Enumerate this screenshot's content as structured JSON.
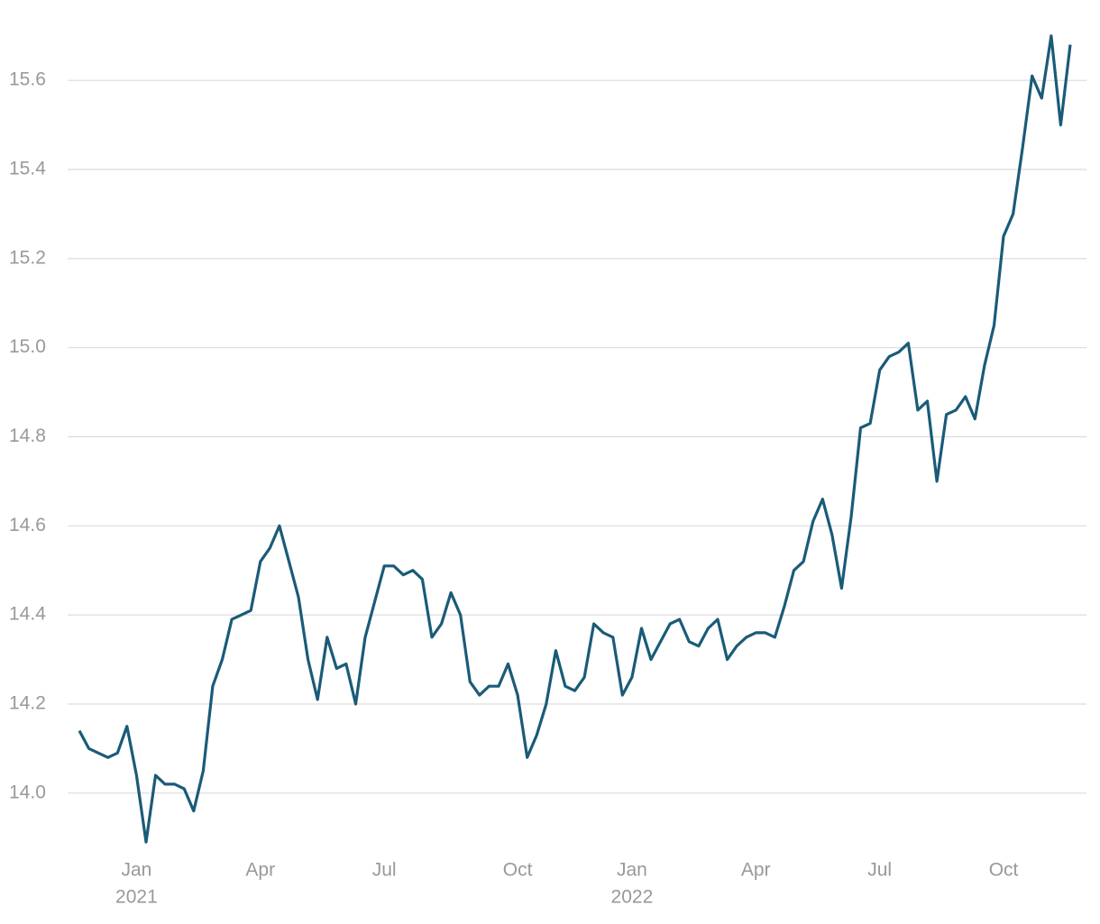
{
  "chart_data": {
    "type": "line",
    "categories": [
      null,
      null,
      null,
      null,
      null,
      null,
      "Jan",
      null,
      null,
      null,
      null,
      null,
      null,
      null,
      null,
      null,
      null,
      null,
      null,
      "Apr",
      null,
      null,
      null,
      null,
      null,
      null,
      null,
      null,
      null,
      null,
      null,
      null,
      "Jul",
      null,
      null,
      null,
      null,
      null,
      null,
      null,
      null,
      null,
      null,
      null,
      null,
      null,
      "Oct",
      null,
      null,
      null,
      null,
      null,
      null,
      null,
      null,
      null,
      null,
      null,
      "Jan",
      null,
      null,
      null,
      null,
      null,
      null,
      null,
      null,
      null,
      null,
      null,
      null,
      "Apr",
      null,
      null,
      null,
      null,
      null,
      null,
      null,
      null,
      null,
      null,
      null,
      null,
      "Jul",
      null,
      null,
      null,
      null,
      null,
      null,
      null,
      null,
      null,
      null,
      null,
      null,
      "Oct",
      null,
      null,
      null,
      null,
      null,
      null,
      null
    ],
    "years": [
      "2021",
      "2022"
    ],
    "series": [
      {
        "color": "#1a5b78",
        "values": [
          14.14,
          14.1,
          14.09,
          14.08,
          14.09,
          14.15,
          14.04,
          13.89,
          14.04,
          14.02,
          14.02,
          14.01,
          13.96,
          14.05,
          14.24,
          14.3,
          14.39,
          14.4,
          14.41,
          14.52,
          14.55,
          14.6,
          14.52,
          14.44,
          14.3,
          14.21,
          14.35,
          14.28,
          14.29,
          14.2,
          14.35,
          14.43,
          14.51,
          14.51,
          14.49,
          14.5,
          14.48,
          14.35,
          14.38,
          14.45,
          14.4,
          14.25,
          14.22,
          14.24,
          14.24,
          14.29,
          14.22,
          14.08,
          14.13,
          14.2,
          14.32,
          14.24,
          14.23,
          14.26,
          14.38,
          14.36,
          14.35,
          14.22,
          14.26,
          14.37,
          14.3,
          14.34,
          14.38,
          14.39,
          14.34,
          14.33,
          14.37,
          14.39,
          14.3,
          14.33,
          14.35,
          14.36,
          14.36,
          14.35,
          14.42,
          14.5,
          14.52,
          14.61,
          14.66,
          14.58,
          14.46,
          14.62,
          14.82,
          14.83,
          14.95,
          14.98,
          14.99,
          15.01,
          14.86,
          14.88,
          14.7,
          14.85,
          14.86,
          14.89,
          14.84,
          14.96,
          15.05,
          15.25,
          15.3,
          15.45,
          15.61,
          15.56,
          15.7,
          15.5,
          15.68
        ]
      }
    ],
    "ylim": [
      13.86,
      15.74
    ],
    "yticks": [
      {
        "value": 14.0,
        "label": "14.0"
      },
      14.2,
      14.4,
      14.6,
      14.8,
      {
        "value": 15.0,
        "label": "15.0"
      },
      15.2,
      15.4,
      15.6
    ],
    "grid": true
  }
}
